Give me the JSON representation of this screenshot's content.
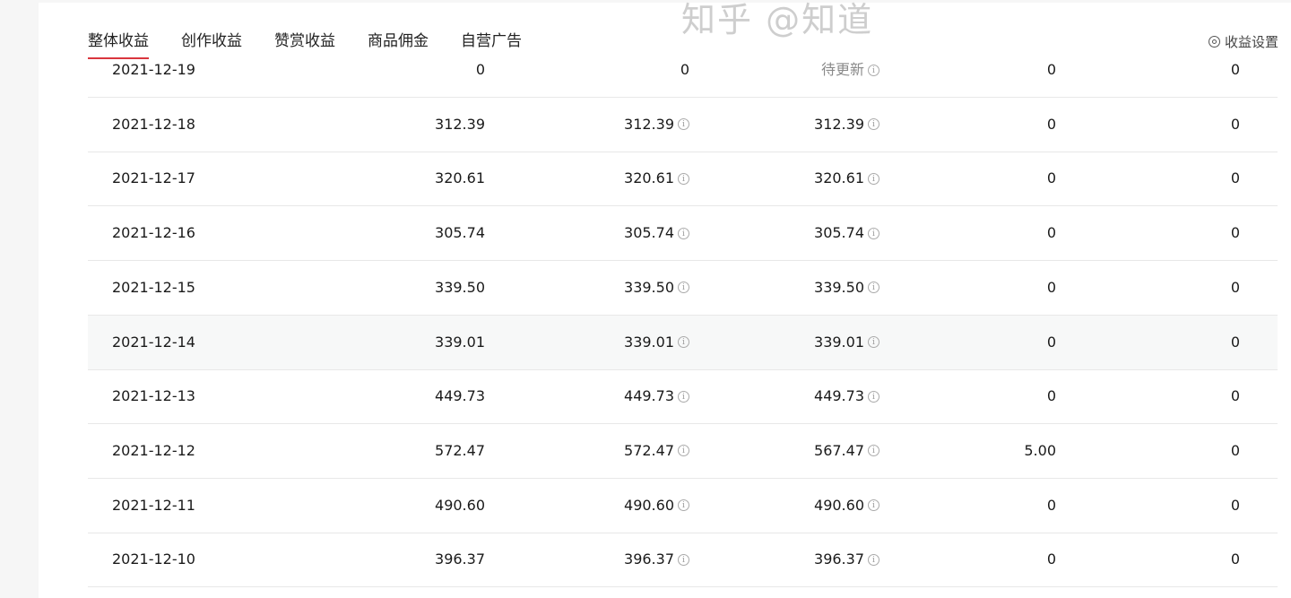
{
  "tabs": [
    {
      "label": "整体收益",
      "active": true
    },
    {
      "label": "创作收益"
    },
    {
      "label": "赞赏收益"
    },
    {
      "label": "商品佣金"
    },
    {
      "label": "自营广告"
    }
  ],
  "settings_label": "收益设置",
  "accent": "#d9363e",
  "rows": [
    {
      "date": "2021-12-19",
      "total": "0",
      "c2": "0",
      "c3": "待更新",
      "c4": "0",
      "c5": "0"
    },
    {
      "date": "2021-12-18",
      "total": "312.39",
      "c2": "312.39",
      "c3": "312.39",
      "c4": "0",
      "c5": "0"
    },
    {
      "date": "2021-12-17",
      "total": "320.61",
      "c2": "320.61",
      "c3": "320.61",
      "c4": "0",
      "c5": "0"
    },
    {
      "date": "2021-12-16",
      "total": "305.74",
      "c2": "305.74",
      "c3": "305.74",
      "c4": "0",
      "c5": "0"
    },
    {
      "date": "2021-12-15",
      "total": "339.50",
      "c2": "339.50",
      "c3": "339.50",
      "c4": "0",
      "c5": "0"
    },
    {
      "date": "2021-12-14",
      "total": "339.01",
      "c2": "339.01",
      "c3": "339.01",
      "c4": "0",
      "c5": "0",
      "highlighted": true
    },
    {
      "date": "2021-12-13",
      "total": "449.73",
      "c2": "449.73",
      "c3": "449.73",
      "c4": "0",
      "c5": "0"
    },
    {
      "date": "2021-12-12",
      "total": "572.47",
      "c2": "572.47",
      "c3": "567.47",
      "c4": "5.00",
      "c5": "0"
    },
    {
      "date": "2021-12-11",
      "total": "490.60",
      "c2": "490.60",
      "c3": "490.60",
      "c4": "0",
      "c5": "0"
    },
    {
      "date": "2021-12-10",
      "total": "396.37",
      "c2": "396.37",
      "c3": "396.37",
      "c4": "0",
      "c5": "0"
    }
  ],
  "watermark": "知乎 @知道"
}
